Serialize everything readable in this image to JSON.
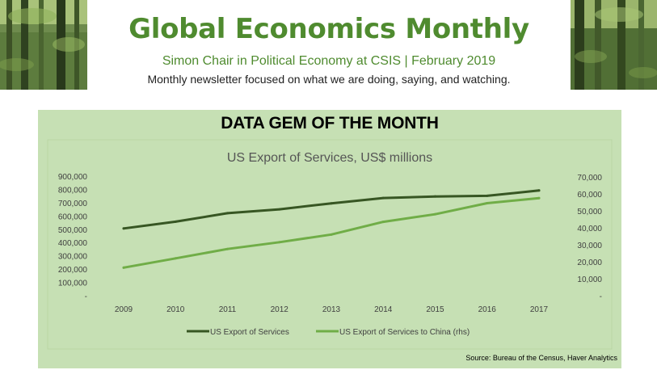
{
  "masthead": {
    "title": "Global Economics Monthly",
    "subtitle": "Simon Chair in Political Economy at CSIS | February 2019",
    "description": "Monthly newsletter focused on what we are doing, saying, and watching."
  },
  "section": {
    "heading": "DATA GEM OF THE MONTH"
  },
  "colors": {
    "brand_green": "#4f8b2f",
    "panel_bg": "#c6e0b4",
    "series_dark": "#375623",
    "series_light": "#70ad47"
  },
  "chart_data": {
    "type": "line",
    "title": "US Export of Services, US$ millions",
    "x": [
      "2009",
      "2010",
      "2011",
      "2012",
      "2013",
      "2014",
      "2015",
      "2016",
      "2017"
    ],
    "y_left": {
      "ticks": [
        "-",
        "100,000",
        "200,000",
        "300,000",
        "400,000",
        "500,000",
        "600,000",
        "700,000",
        "800,000",
        "900,000"
      ],
      "range": [
        0,
        900000
      ]
    },
    "y_right": {
      "ticks": [
        "-",
        "10,000",
        "20,000",
        "30,000",
        "40,000",
        "50,000",
        "60,000",
        "70,000"
      ],
      "range": [
        0,
        70000
      ]
    },
    "series": [
      {
        "name": "US  Export of Services",
        "axis": "left",
        "color": "#375623",
        "values": [
          512000,
          563000,
          627000,
          656000,
          701000,
          741000,
          753000,
          758000,
          798000
        ]
      },
      {
        "name": "US Export of Services to China (rhs)",
        "axis": "right",
        "color": "#70ad47",
        "values": [
          17000,
          22500,
          28000,
          32000,
          36500,
          44000,
          48500,
          55000,
          58000
        ]
      }
    ],
    "legend": "bottom",
    "grid": false,
    "source": "Source: Bureau of the Census, Haver Analytics"
  }
}
